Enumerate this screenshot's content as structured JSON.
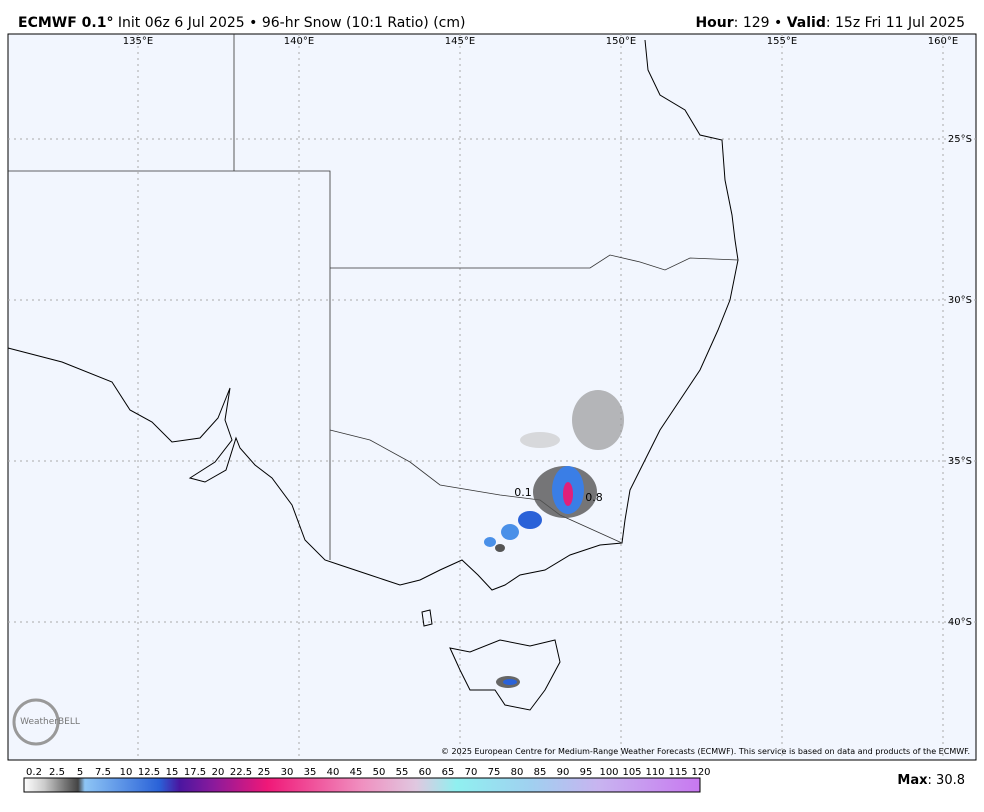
{
  "header": {
    "model": "ECMWF 0.1°",
    "run": "Init 06z 6 Jul 2025 • 96-hr Snow (10:1 Ratio) (cm)",
    "hour_label": "Hour",
    "hour_text": ": 129 • ",
    "valid_label": "Valid",
    "valid_text": ": 15z Fri 11 Jul 2025"
  },
  "map": {
    "lon_labels": [
      {
        "value": 135,
        "label": "135°E"
      },
      {
        "value": 140,
        "label": "140°E"
      },
      {
        "value": 145,
        "label": "145°E"
      },
      {
        "value": 150,
        "label": "150°E"
      },
      {
        "value": 155,
        "label": "155°E"
      },
      {
        "value": 160,
        "label": "160°E"
      }
    ],
    "lat_labels": [
      {
        "value": 25,
        "label": "25°S"
      },
      {
        "value": 30,
        "label": "30°S"
      },
      {
        "value": 35,
        "label": "35°S"
      },
      {
        "value": 40,
        "label": "40°S"
      }
    ],
    "point_labels": [
      "0.1",
      "0.8"
    ],
    "logo": "WeatherBELL",
    "copyright": "© 2025 European Centre for Medium-Range Weather Forecasts (ECMWF). This service is based on data and products of the ECMWF."
  },
  "colorbar": {
    "labels": [
      0.2,
      2.5,
      5,
      7.5,
      10,
      12.5,
      15,
      17.5,
      20,
      22.5,
      25,
      30,
      35,
      40,
      45,
      50,
      55,
      60,
      65,
      70,
      75,
      80,
      85,
      90,
      95,
      100,
      105,
      110,
      115,
      120
    ]
  },
  "footer": {
    "max_label": "Max",
    "max_text": ": 30.8"
  }
}
